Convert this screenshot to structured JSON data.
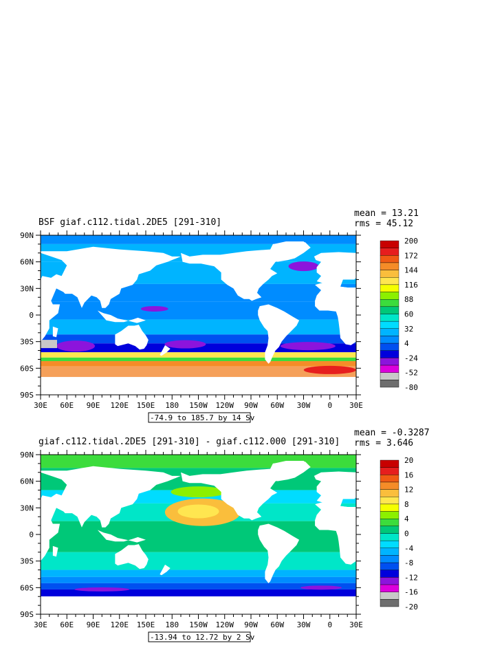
{
  "panels": [
    {
      "title": "BSF giaf.c112.tidal.2DE5 [291-310]",
      "stats": {
        "mean": "mean = 13.21",
        "rms": "rms = 45.12"
      },
      "range_label": "-74.9 to 185.7 by 14 Sv",
      "colorbar": {
        "labels": [
          "200",
          "172",
          "144",
          "116",
          "88",
          "60",
          "32",
          "4",
          "-24",
          "-52",
          "-80"
        ],
        "colors": [
          "#c80000",
          "#e61e1e",
          "#f05a14",
          "#f58c28",
          "#fabe3c",
          "#ffe650",
          "#f5ff00",
          "#8cf000",
          "#3cdc3c",
          "#00c878",
          "#00e6c8",
          "#00dcff",
          "#00b4ff",
          "#008cff",
          "#0050f0",
          "#0000dc",
          "#8c14dc",
          "#dc00dc",
          "#c8c8c8",
          "#6e6e6e"
        ]
      }
    },
    {
      "title": "giaf.c112.tidal.2DE5 [291-310] - giaf.c112.000 [291-310]",
      "stats": {
        "mean": "mean = -0.3287",
        "rms": "rms = 3.646"
      },
      "range_label": "-13.94 to 12.72 by 2 Sv",
      "colorbar": {
        "labels": [
          "20",
          "16",
          "12",
          "8",
          "4",
          "0",
          "-4",
          "-8",
          "-12",
          "-16",
          "-20"
        ],
        "colors": [
          "#c80000",
          "#e61e1e",
          "#f05a14",
          "#f58c28",
          "#fabe3c",
          "#ffe650",
          "#f5ff00",
          "#8cf000",
          "#3cdc3c",
          "#00c878",
          "#00e6c8",
          "#00dcff",
          "#00b4ff",
          "#008cff",
          "#0050f0",
          "#0000dc",
          "#8c14dc",
          "#dc00dc",
          "#c8c8c8",
          "#6e6e6e"
        ]
      }
    }
  ],
  "axes": {
    "lat_labels": [
      "90N",
      "60N",
      "30N",
      "0",
      "30S",
      "60S",
      "90S"
    ],
    "lon_labels": [
      "30E",
      "60E",
      "90E",
      "120E",
      "150E",
      "180",
      "150W",
      "120W",
      "90W",
      "60W",
      "30W",
      "0",
      "30E"
    ]
  },
  "colors": {
    "land": "#ffffff",
    "frame": "#000000"
  }
}
